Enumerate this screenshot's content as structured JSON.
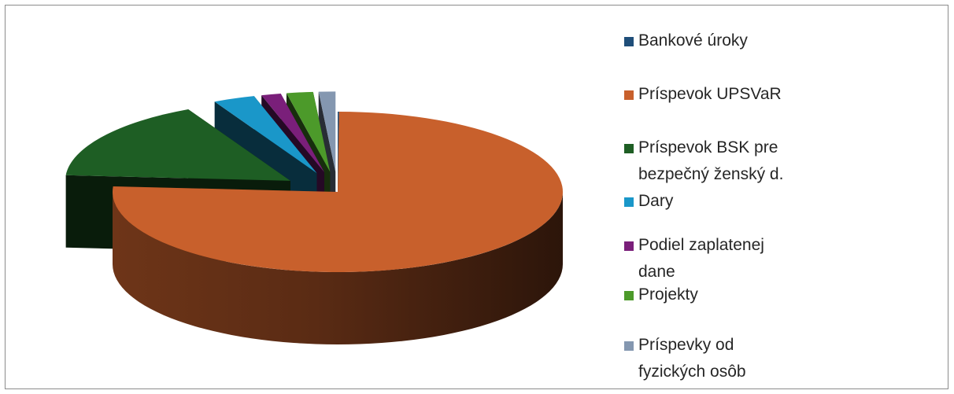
{
  "chart_data": {
    "type": "pie",
    "title": "",
    "three_d": true,
    "legend_position": "right",
    "categories": [
      "Bankové úroky",
      "Príspevok UPSVaR",
      "Príspevok BSK pre bezpečný ženský d.",
      "Dary",
      "Podiel zaplatenej dane",
      "Projekty",
      "Príspevky od fyzických osôb"
    ],
    "legend_lines": [
      [
        "Bankové úroky"
      ],
      [
        "Príspevok UPSVaR"
      ],
      [
        "Príspevok BSK pre",
        "bezpečný ženský d."
      ],
      [
        "Dary"
      ],
      [
        "Podiel zaplatenej",
        "dane"
      ],
      [
        "Projekty"
      ],
      [
        "Príspevky od",
        "fyzických osôb"
      ]
    ],
    "values": [
      0.1,
      76.0,
      16.4,
      3.0,
      1.4,
      1.9,
      1.2
    ],
    "exploded": [
      false,
      false,
      true,
      true,
      true,
      true,
      true
    ],
    "colors": [
      "#1f4e79",
      "#c8602c",
      "#1e5e24",
      "#1a97c9",
      "#7a1f7a",
      "#4c9a2a",
      "#8497b0"
    ]
  }
}
